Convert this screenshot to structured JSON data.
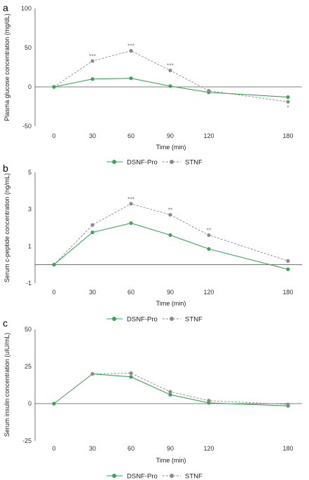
{
  "colors": {
    "dsnf": "#3aa655",
    "stnf": "#8a8a8a",
    "axis": "#555555"
  },
  "legend": {
    "series_a": "DSNF-Pro",
    "series_b": "STNF"
  },
  "chart_data": [
    {
      "panel": "a",
      "type": "line",
      "xlabel": "Time (min)",
      "ylabel": "Plasma glucose concentration (mg/dL)",
      "x": [
        0,
        30,
        60,
        90,
        120,
        180
      ],
      "xticks": [
        "0",
        "30",
        "60",
        "90",
        "120",
        "180"
      ],
      "yticks": [
        100,
        50,
        0,
        -50
      ],
      "ylim": [
        -50,
        100
      ],
      "series": [
        {
          "name": "DSNF-Pro",
          "values": [
            0,
            10,
            11,
            1,
            -7,
            -13
          ]
        },
        {
          "name": "STNF",
          "values": [
            0,
            33,
            46,
            21,
            -5,
            -19
          ]
        }
      ],
      "annotations": [
        {
          "x": 30,
          "y": 33,
          "text": "***"
        },
        {
          "x": 60,
          "y": 46,
          "text": "***"
        },
        {
          "x": 90,
          "y": 21,
          "text": "***"
        },
        {
          "x": 180,
          "y": -19,
          "text": "*",
          "below": true
        }
      ]
    },
    {
      "panel": "b",
      "type": "line",
      "xlabel": "Time (min)",
      "ylabel": "Serum c-peptide concentration (ng/mL)",
      "x": [
        0,
        30,
        60,
        90,
        120,
        180
      ],
      "xticks": [
        "0",
        "30",
        "60",
        "90",
        "120",
        "180"
      ],
      "yticks": [
        5,
        3,
        1,
        -1
      ],
      "ylim": [
        -1,
        5
      ],
      "series": [
        {
          "name": "DSNF-Pro",
          "values": [
            0,
            1.75,
            2.25,
            1.6,
            0.85,
            -0.25
          ]
        },
        {
          "name": "STNF",
          "values": [
            0,
            2.15,
            3.3,
            2.7,
            1.6,
            0.2
          ]
        }
      ],
      "annotations": [
        {
          "x": 60,
          "y": 3.3,
          "text": "***"
        },
        {
          "x": 90,
          "y": 2.7,
          "text": "**"
        },
        {
          "x": 120,
          "y": 1.6,
          "text": "**"
        }
      ]
    },
    {
      "panel": "c",
      "type": "line",
      "xlabel": "Time (min)",
      "ylabel": "Serum insulin concentration (uIU/mL)",
      "x": [
        0,
        30,
        60,
        90,
        120,
        180
      ],
      "xticks": [
        "0",
        "30",
        "60",
        "90",
        "120",
        "180"
      ],
      "yticks": [
        50,
        25,
        0,
        -25
      ],
      "ylim": [
        -25,
        50
      ],
      "series": [
        {
          "name": "DSNF-Pro",
          "values": [
            0,
            20,
            18,
            6,
            0.5,
            -1.5
          ]
        },
        {
          "name": "STNF",
          "values": [
            0,
            20,
            20.5,
            8,
            2,
            -0.5
          ]
        }
      ],
      "annotations": []
    }
  ]
}
